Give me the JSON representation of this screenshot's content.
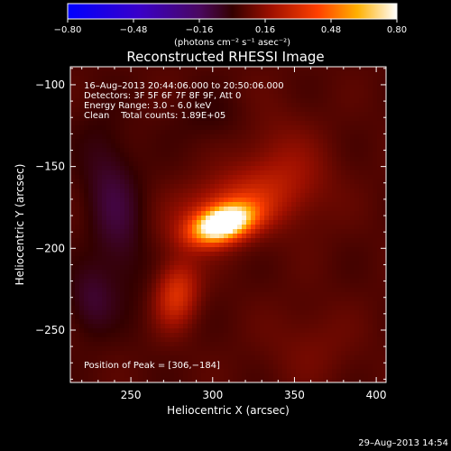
{
  "chart_data": {
    "type": "heatmap",
    "title": "Reconstructed RHESSI Image",
    "xlabel": "Heliocentric X (arcsec)",
    "ylabel": "Heliocentric Y (arcsec)",
    "xlim": [
      213,
      406
    ],
    "ylim": [
      -282,
      -89
    ],
    "x_ticks": [
      250,
      300,
      350,
      400
    ],
    "y_ticks": [
      -100,
      -150,
      -200,
      -250
    ],
    "x_tick_labels": [
      "250",
      "300",
      "350",
      "400"
    ],
    "y_tick_labels": [
      "−100",
      "−150",
      "−200",
      "−250"
    ],
    "colorbar": {
      "min": -0.8,
      "max": 0.8,
      "ticks": [
        -0.8,
        -0.48,
        -0.16,
        0.16,
        0.48,
        0.8
      ],
      "tick_labels": [
        "−0.80",
        "−0.48",
        "−0.16",
        "0.16",
        "0.48",
        "0.80"
      ],
      "unit_label": "(photons cm⁻² s⁻¹ asec⁻²)"
    },
    "peak": [
      306,
      -184
    ],
    "info_lines": [
      "16–Aug–2013 20:44:06.000 to 20:50:06.000",
      "Detectors: 3F 5F 6F 7F 8F 9F, Att 0",
      "Energy Range: 3.0 – 6.0 keV",
      "Clean    Total counts: 1.89E+05"
    ],
    "peak_text": "Position of Peak = [306,−184]",
    "features": [
      {
        "x": 306,
        "y": -185,
        "amplitude": 0.88,
        "sx": 13,
        "sy": 7,
        "angle": 18
      },
      {
        "x": 312,
        "y": -175,
        "amplitude": 0.25,
        "sx": 26,
        "sy": 14,
        "angle": 20
      },
      {
        "x": 278,
        "y": -228,
        "amplitude": 0.28,
        "sx": 9,
        "sy": 14,
        "angle": -10
      },
      {
        "x": 240,
        "y": -175,
        "amplitude": -0.14,
        "sx": 12,
        "sy": 35,
        "angle": 10
      },
      {
        "x": 226,
        "y": -232,
        "amplitude": -0.12,
        "sx": 10,
        "sy": 15,
        "angle": 0
      },
      {
        "x": 300,
        "y": -120,
        "amplitude": -0.05,
        "sx": 18,
        "sy": 12,
        "angle": 0
      },
      {
        "x": 345,
        "y": -150,
        "amplitude": 0.1,
        "sx": 18,
        "sy": 25,
        "angle": 30
      },
      {
        "x": 360,
        "y": -260,
        "amplitude": 0.06,
        "sx": 20,
        "sy": 18,
        "angle": 0
      }
    ],
    "background": 0.05
  },
  "footer": {
    "timestamp": "29–Aug–2013 14:54"
  }
}
